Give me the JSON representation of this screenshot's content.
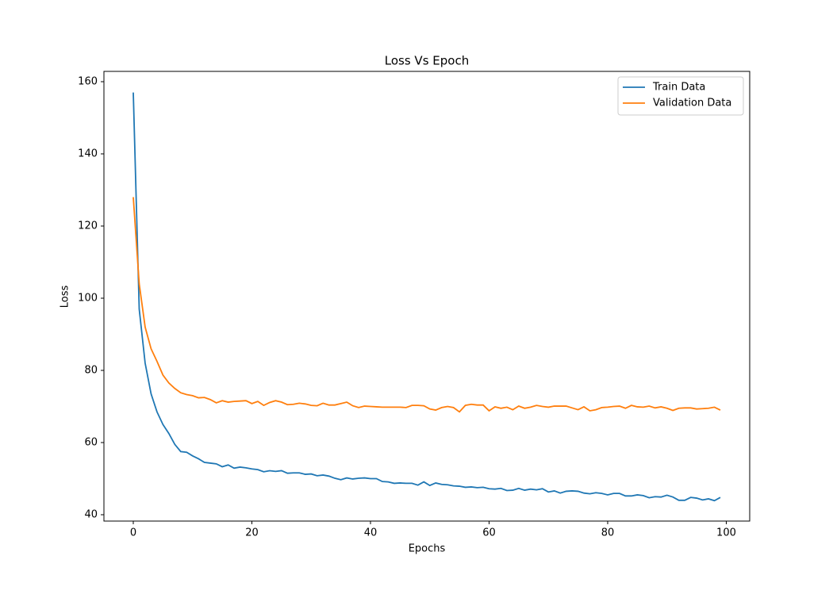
{
  "chart_data": {
    "type": "line",
    "title": "Loss Vs Epoch",
    "xlabel": "Epochs",
    "ylabel": "Loss",
    "x": [
      0,
      1,
      2,
      3,
      4,
      5,
      6,
      7,
      8,
      9,
      10,
      11,
      12,
      13,
      14,
      15,
      16,
      17,
      18,
      19,
      20,
      21,
      22,
      23,
      24,
      25,
      26,
      27,
      28,
      29,
      30,
      31,
      32,
      33,
      34,
      35,
      36,
      37,
      38,
      39,
      40,
      41,
      42,
      43,
      44,
      45,
      46,
      47,
      48,
      49,
      50,
      51,
      52,
      53,
      54,
      55,
      56,
      57,
      58,
      59,
      60,
      61,
      62,
      63,
      64,
      65,
      66,
      67,
      68,
      69,
      70,
      71,
      72,
      73,
      74,
      75,
      76,
      77,
      78,
      79,
      80,
      81,
      82,
      83,
      84,
      85,
      86,
      87,
      88,
      89,
      90,
      91,
      92,
      93,
      94,
      95,
      96,
      97,
      98,
      99
    ],
    "series": [
      {
        "name": "Train Data",
        "color": "#1f77b4",
        "values": [
          157,
          97,
          82,
          73.5,
          68.5,
          65,
          62.5,
          59.5,
          57.5,
          57.3,
          56.3,
          55.5,
          54.5,
          54.3,
          54.1,
          53.3,
          53.8,
          52.9,
          53.2,
          53,
          52.7,
          52.5,
          51.9,
          52.2,
          52,
          52.2,
          51.5,
          51.6,
          51.6,
          51.2,
          51.3,
          50.8,
          51,
          50.7,
          50.1,
          49.7,
          50.2,
          49.9,
          50.1,
          50.2,
          50,
          50,
          49.2,
          49.1,
          48.7,
          48.8,
          48.7,
          48.7,
          48.2,
          49.1,
          48.1,
          48.8,
          48.4,
          48.3,
          48,
          47.9,
          47.6,
          47.7,
          47.5,
          47.6,
          47.2,
          47.1,
          47.3,
          46.7,
          46.8,
          47.3,
          46.8,
          47.1,
          46.9,
          47.2,
          46.3,
          46.6,
          46,
          46.5,
          46.6,
          46.5,
          46,
          45.8,
          46.1,
          45.9,
          45.5,
          45.9,
          45.9,
          45.2,
          45.2,
          45.5,
          45.3,
          44.7,
          45,
          44.9,
          45.4,
          44.9,
          44,
          44,
          44.8,
          44.6,
          44.1,
          44.4,
          43.9,
          44.8
        ]
      },
      {
        "name": "Validation Data",
        "color": "#ff7f0e",
        "values": [
          128,
          104,
          92,
          86,
          82.5,
          78.7,
          76.5,
          75,
          73.8,
          73.3,
          73,
          72.4,
          72.5,
          71.9,
          71,
          71.6,
          71.2,
          71.4,
          71.5,
          71.6,
          70.8,
          71.4,
          70.3,
          71.1,
          71.6,
          71.2,
          70.5,
          70.6,
          70.9,
          70.7,
          70.3,
          70.2,
          70.9,
          70.4,
          70.4,
          70.8,
          71.2,
          70.2,
          69.7,
          70.1,
          70,
          69.9,
          69.8,
          69.8,
          69.8,
          69.8,
          69.7,
          70.3,
          70.3,
          70.2,
          69.3,
          69,
          69.7,
          70,
          69.7,
          68.5,
          70.3,
          70.6,
          70.4,
          70.4,
          68.8,
          69.9,
          69.5,
          69.8,
          69.1,
          70.1,
          69.5,
          69.8,
          70.3,
          70,
          69.8,
          70.1,
          70.1,
          70.1,
          69.6,
          69.1,
          69.9,
          68.8,
          69.1,
          69.7,
          69.8,
          70,
          70.1,
          69.5,
          70.3,
          69.9,
          69.8,
          70.1,
          69.6,
          69.9,
          69.5,
          68.9,
          69.5,
          69.6,
          69.6,
          69.3,
          69.4,
          69.5,
          69.8,
          69
        ]
      }
    ],
    "xlim": [
      -4.95,
      103.95
    ],
    "xticks": [
      0,
      20,
      40,
      60,
      80,
      100
    ],
    "ylim": [
      38.24,
      162.86
    ],
    "yticks": [
      40,
      60,
      80,
      100,
      120,
      140,
      160
    ],
    "legend": "upper right",
    "grid": false
  }
}
